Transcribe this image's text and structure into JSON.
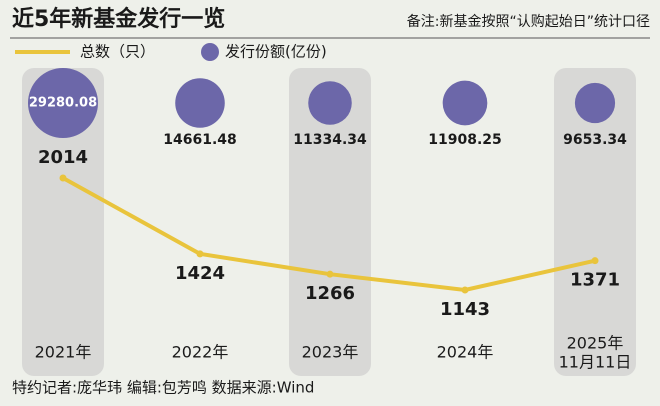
{
  "chart_data": {
    "type": "line",
    "title": "近5年新基金发行一览",
    "note": "备注:新基金按照“认购起始日”统计口径",
    "categories": [
      "2021年",
      "2022年",
      "2023年",
      "2024年",
      "2025年\n11月11日"
    ],
    "series": [
      {
        "name": "总数（只）",
        "color": "#e9c43c",
        "values": [
          2014,
          1424,
          1266,
          1143,
          1371
        ]
      },
      {
        "name": "发行份额(亿份)",
        "color": "#6c67a9",
        "type": "bubble",
        "values": [
          29280.08,
          14661.48,
          11334.34,
          11908.25,
          9653.34
        ]
      }
    ]
  },
  "footer": "特约记者:庞华玮  编辑:包芳鸣  数据来源:Wind"
}
